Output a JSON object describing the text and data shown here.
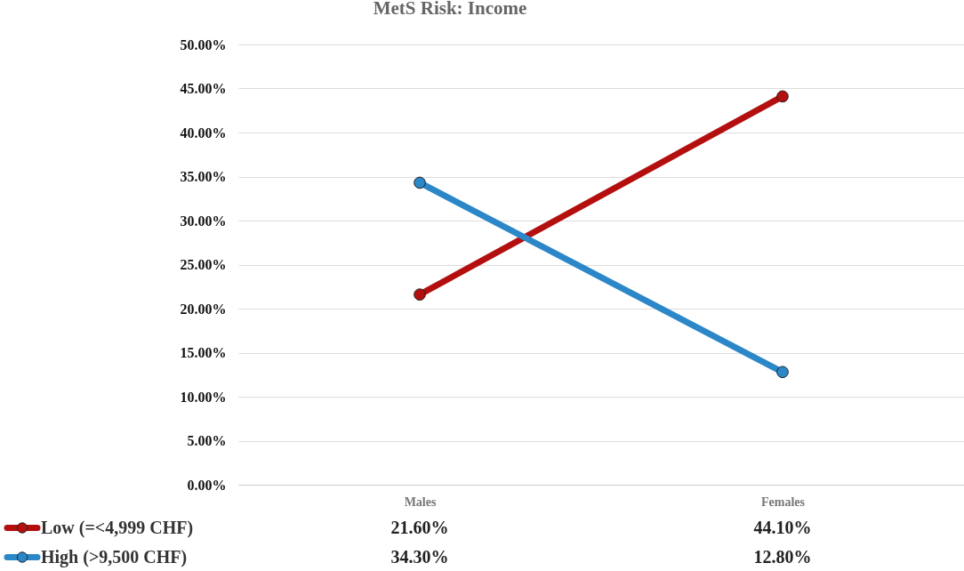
{
  "chart_data": {
    "type": "line",
    "title": "MetS Risk: Income",
    "categories": [
      "Males",
      "Females"
    ],
    "series": [
      {
        "name": "Low (=<4,999 CHF)",
        "color": "#b40f0f",
        "values": [
          21.6,
          44.1
        ],
        "value_labels": [
          "21.60%",
          "44.10%"
        ]
      },
      {
        "name": "High (>9,500 CHF)",
        "color": "#2b87c8",
        "values": [
          34.3,
          12.8
        ],
        "value_labels": [
          "34.30%",
          "12.80%"
        ]
      }
    ],
    "ylim": [
      0,
      50
    ],
    "yticks": [
      {
        "value": 0,
        "label": "0.00%"
      },
      {
        "value": 5,
        "label": "5.00%"
      },
      {
        "value": 10,
        "label": "10.00%"
      },
      {
        "value": 15,
        "label": "15.00%"
      },
      {
        "value": 20,
        "label": "20.00%"
      },
      {
        "value": 25,
        "label": "25.00%"
      },
      {
        "value": 30,
        "label": "30.00%"
      },
      {
        "value": 35,
        "label": "35.00%"
      },
      {
        "value": 40,
        "label": "40.00%"
      },
      {
        "value": 45,
        "label": "45.00%"
      },
      {
        "value": 50,
        "label": "50.00%"
      }
    ],
    "grid": "y",
    "legend": "bottom left",
    "marker": "circle",
    "line_style": "solid"
  }
}
